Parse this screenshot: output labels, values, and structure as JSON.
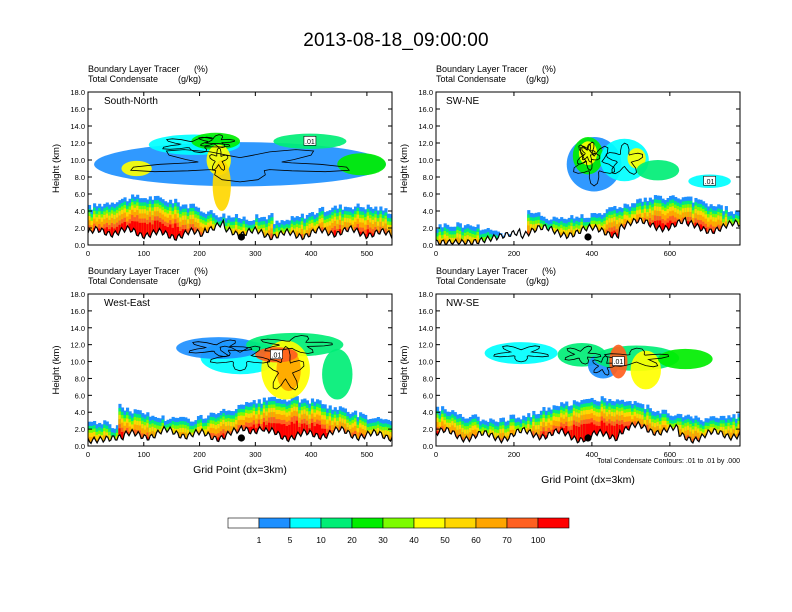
{
  "title": "2013-08-18_09:00:00",
  "colorbar": {
    "colors": [
      "#ffffff",
      "#1e90ff",
      "#00ffff",
      "#00ee76",
      "#00ee00",
      "#7cfc00",
      "#ffff00",
      "#ffd700",
      "#ffa500",
      "#ff6020",
      "#ff0000"
    ],
    "labels": [
      "1",
      "5",
      "10",
      "20",
      "30",
      "40",
      "50",
      "60",
      "70",
      "100"
    ]
  },
  "contour_note": "Total Condensate Contours: .01 to .01 by .000",
  "chart_data": [
    {
      "type": "heatmap",
      "panel_label": "South-North",
      "subtitle_left": "Boundary Layer Tracer",
      "subtitle_right": "(%)",
      "subtitle2_left": "Total Condensate",
      "subtitle2_right": "(g/kg)",
      "ylabel": "Height (km)",
      "xlabel": "",
      "xlim": [
        0,
        545
      ],
      "ylim": [
        0,
        18
      ],
      "xticks": [
        0,
        100,
        200,
        300,
        400,
        500
      ],
      "yticks": [
        "0.0",
        "2.0",
        "4.0",
        "6.0",
        "8.0",
        "10.0",
        "12.0",
        "14.0",
        "16.0",
        "18.0"
      ],
      "marker_x": 275,
      "contour_label": ".01"
    },
    {
      "type": "heatmap",
      "panel_label": "SW-NE",
      "subtitle_left": "Boundary Layer Tracer",
      "subtitle_right": "(%)",
      "subtitle2_left": "Total Condensate",
      "subtitle2_right": "(g/kg)",
      "ylabel": "Height (km)",
      "xlabel": "",
      "xlim": [
        0,
        780
      ],
      "ylim": [
        0,
        18
      ],
      "xticks": [
        0,
        200,
        400,
        600
      ],
      "yticks": [
        "0.0",
        "2.0",
        "4.0",
        "6.0",
        "8.0",
        "10.0",
        "12.0",
        "14.0",
        "16.0",
        "18.0"
      ],
      "marker_x": 390,
      "contour_label": ".01"
    },
    {
      "type": "heatmap",
      "panel_label": "West-East",
      "subtitle_left": "Boundary Layer Tracer",
      "subtitle_right": "(%)",
      "subtitle2_left": "Total Condensate",
      "subtitle2_right": "(g/kg)",
      "ylabel": "Height (km)",
      "xlabel": "Grid Point (dx=3km)",
      "xlim": [
        0,
        545
      ],
      "ylim": [
        0,
        18
      ],
      "xticks": [
        0,
        100,
        200,
        300,
        400,
        500
      ],
      "yticks": [
        "0.0",
        "2.0",
        "4.0",
        "6.0",
        "8.0",
        "10.0",
        "12.0",
        "14.0",
        "16.0",
        "18.0"
      ],
      "marker_x": 275,
      "contour_label": ".01"
    },
    {
      "type": "heatmap",
      "panel_label": "NW-SE",
      "subtitle_left": "Boundary Layer Tracer",
      "subtitle_right": "(%)",
      "subtitle2_left": "Total Condensate",
      "subtitle2_right": "(g/kg)",
      "ylabel": "Height (km)",
      "xlabel": "Grid Point (dx=3km)",
      "xlim": [
        0,
        780
      ],
      "ylim": [
        0,
        18
      ],
      "xticks": [
        0,
        200,
        400,
        600
      ],
      "yticks": [
        "0.0",
        "2.0",
        "4.0",
        "6.0",
        "8.0",
        "10.0",
        "12.0",
        "14.0",
        "16.0",
        "18.0"
      ],
      "marker_x": 390,
      "contour_label": ".01"
    }
  ]
}
